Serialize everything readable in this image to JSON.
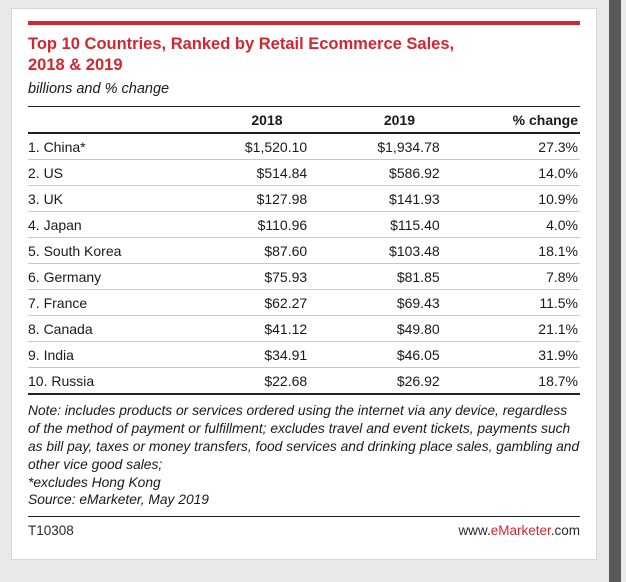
{
  "page": {
    "accent_red": "#d22630",
    "background": "#e9e9e9"
  },
  "header": {
    "title_line1": "Top 10 Countries, Ranked by Retail Ecommerce Sales,",
    "title_line2": "2018 & 2019",
    "subtitle": "billions and % change"
  },
  "table": {
    "columns": [
      "",
      "2018",
      "2019",
      "% change"
    ],
    "rows": [
      {
        "country": "1. China*",
        "y2018": "$1,520.10",
        "y2019": "$1,934.78",
        "change": "27.3%"
      },
      {
        "country": "2. US",
        "y2018": "$514.84",
        "y2019": "$586.92",
        "change": "14.0%"
      },
      {
        "country": "3. UK",
        "y2018": "$127.98",
        "y2019": "$141.93",
        "change": "10.9%"
      },
      {
        "country": "4. Japan",
        "y2018": "$110.96",
        "y2019": "$115.40",
        "change": "4.0%"
      },
      {
        "country": "5. South Korea",
        "y2018": "$87.60",
        "y2019": "$103.48",
        "change": "18.1%"
      },
      {
        "country": "6. Germany",
        "y2018": "$75.93",
        "y2019": "$81.85",
        "change": "7.8%"
      },
      {
        "country": "7. France",
        "y2018": "$62.27",
        "y2019": "$69.43",
        "change": "11.5%"
      },
      {
        "country": "8. Canada",
        "y2018": "$41.12",
        "y2019": "$49.80",
        "change": "21.1%"
      },
      {
        "country": "9. India",
        "y2018": "$34.91",
        "y2019": "$46.05",
        "change": "31.9%"
      },
      {
        "country": "10. Russia",
        "y2018": "$22.68",
        "y2019": "$26.92",
        "change": "18.7%"
      }
    ]
  },
  "notes": {
    "note": "Note: includes products or services ordered using the internet via any device, regardless of the method of payment or fulfillment; excludes travel and event tickets, payments such as bill pay, taxes or money transfers, food services and drinking place sales, gambling and other vice good sales;",
    "asterisk": "*excludes Hong Kong",
    "source": "Source: eMarketer, May 2019"
  },
  "footer": {
    "chart_id": "T10308",
    "url_prefix": "www.",
    "url_brand": "eMarketer",
    "url_suffix": ".com"
  },
  "chart_data": {
    "type": "table",
    "title": "Top 10 Countries, Ranked by Retail Ecommerce Sales, 2018 & 2019",
    "subtitle": "billions and % change",
    "units": "billions USD",
    "categories": [
      "China*",
      "US",
      "UK",
      "Japan",
      "South Korea",
      "Germany",
      "France",
      "Canada",
      "India",
      "Russia"
    ],
    "series": [
      {
        "name": "2018",
        "values": [
          1520.1,
          514.84,
          127.98,
          110.96,
          87.6,
          75.93,
          62.27,
          41.12,
          34.91,
          22.68
        ]
      },
      {
        "name": "2019",
        "values": [
          1934.78,
          586.92,
          141.93,
          115.4,
          103.48,
          81.85,
          69.43,
          49.8,
          46.05,
          26.92
        ]
      },
      {
        "name": "% change",
        "values": [
          27.3,
          14.0,
          10.9,
          4.0,
          18.1,
          7.8,
          11.5,
          21.1,
          31.9,
          18.7
        ]
      }
    ],
    "source": "eMarketer, May 2019"
  }
}
